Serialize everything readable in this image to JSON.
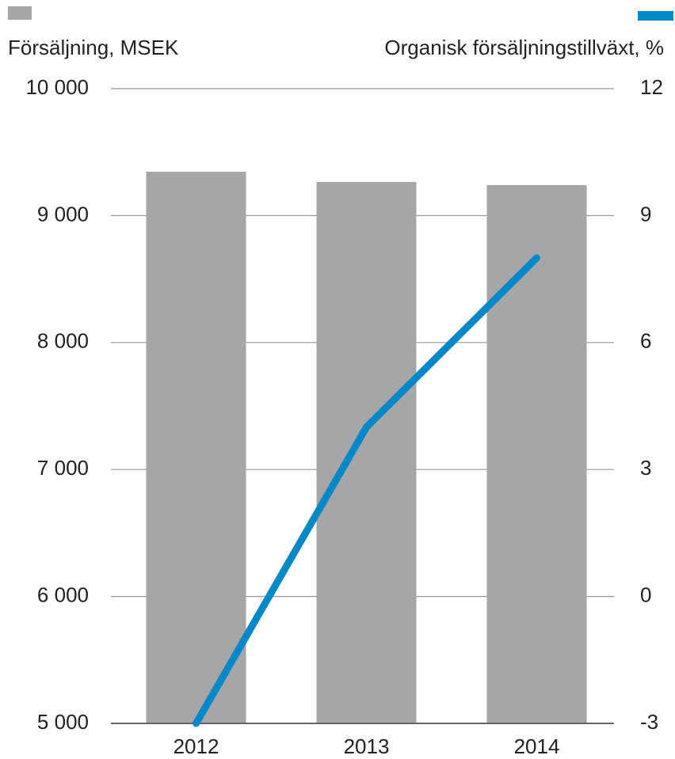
{
  "chart_data": {
    "type": "bar_line",
    "categories": [
      "2012",
      "2013",
      "2014"
    ],
    "series": [
      {
        "name": "Försäljning, MSEK",
        "color": "#a6a6a6",
        "values": [
          9345,
          9265,
          9240
        ]
      },
      {
        "name": "Organisk försäljningstillväxt, %",
        "color": "#0088c8",
        "values": [
          -3,
          4,
          8
        ],
        "axis": "y2"
      }
    ],
    "ylim": [
      5000,
      10000
    ],
    "yticks": [
      {
        "value": 5000,
        "label": "5 000"
      },
      {
        "value": 6000,
        "label": "6 000"
      },
      {
        "value": 7000,
        "label": "7 000"
      },
      {
        "value": 8000,
        "label": "8 000"
      },
      {
        "value": 9000,
        "label": "9 000"
      },
      {
        "value": 10000,
        "label": "10 000"
      }
    ],
    "y2lim": [
      -3,
      12
    ],
    "y2ticks": [
      -3,
      0,
      3,
      6,
      9,
      12
    ],
    "grid": true
  }
}
